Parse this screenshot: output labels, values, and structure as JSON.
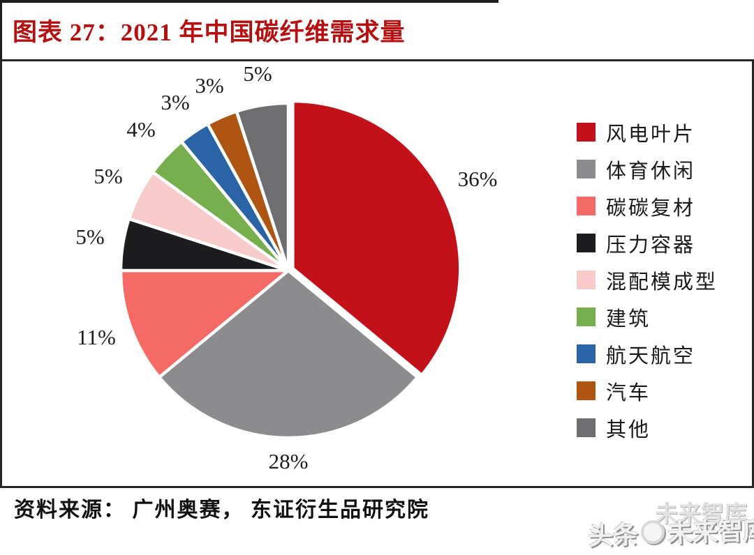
{
  "title": {
    "text": "图表 27：2021 年中国碳纤维需求量"
  },
  "chart_data": {
    "type": "pie",
    "title": "2021 年中国碳纤维需求量",
    "unit": "percent share",
    "start_angle_deg": 0,
    "direction": "clockwise",
    "legend_position": "right",
    "slices": [
      {
        "label": "风电叶片",
        "value": 36,
        "pct_label": "36%",
        "color": "#C3111A"
      },
      {
        "label": "体育休闲",
        "value": 28,
        "pct_label": "28%",
        "color": "#8C8C8E"
      },
      {
        "label": "碳碳复材",
        "value": 11,
        "pct_label": "11%",
        "color": "#F66A65"
      },
      {
        "label": "压力容器",
        "value": 5,
        "pct_label": "5%",
        "color": "#1D1D1F"
      },
      {
        "label": "混配模成型",
        "value": 5,
        "pct_label": "5%",
        "color": "#F6CBC9"
      },
      {
        "label": "建筑",
        "value": 4,
        "pct_label": "4%",
        "color": "#77AE4E"
      },
      {
        "label": "航天航空",
        "value": 3,
        "pct_label": "3%",
        "color": "#2A64A6"
      },
      {
        "label": "汽车",
        "value": 3,
        "pct_label": "3%",
        "color": "#AF5514"
      },
      {
        "label": "其他",
        "value": 5,
        "pct_label": "5%",
        "color": "#6E6E71"
      }
    ]
  },
  "source": {
    "text": "资料来源： 广州奥赛， 东证衍生品研究院"
  },
  "watermark": {
    "faint_text": "未来智库",
    "prefix": "头条",
    "name": "未来智库"
  },
  "colors": {
    "title_red": "#B50F0F",
    "box_border": "#262626",
    "label_text": "#1B1B1B",
    "slice_divider": "#FFFFFF"
  }
}
